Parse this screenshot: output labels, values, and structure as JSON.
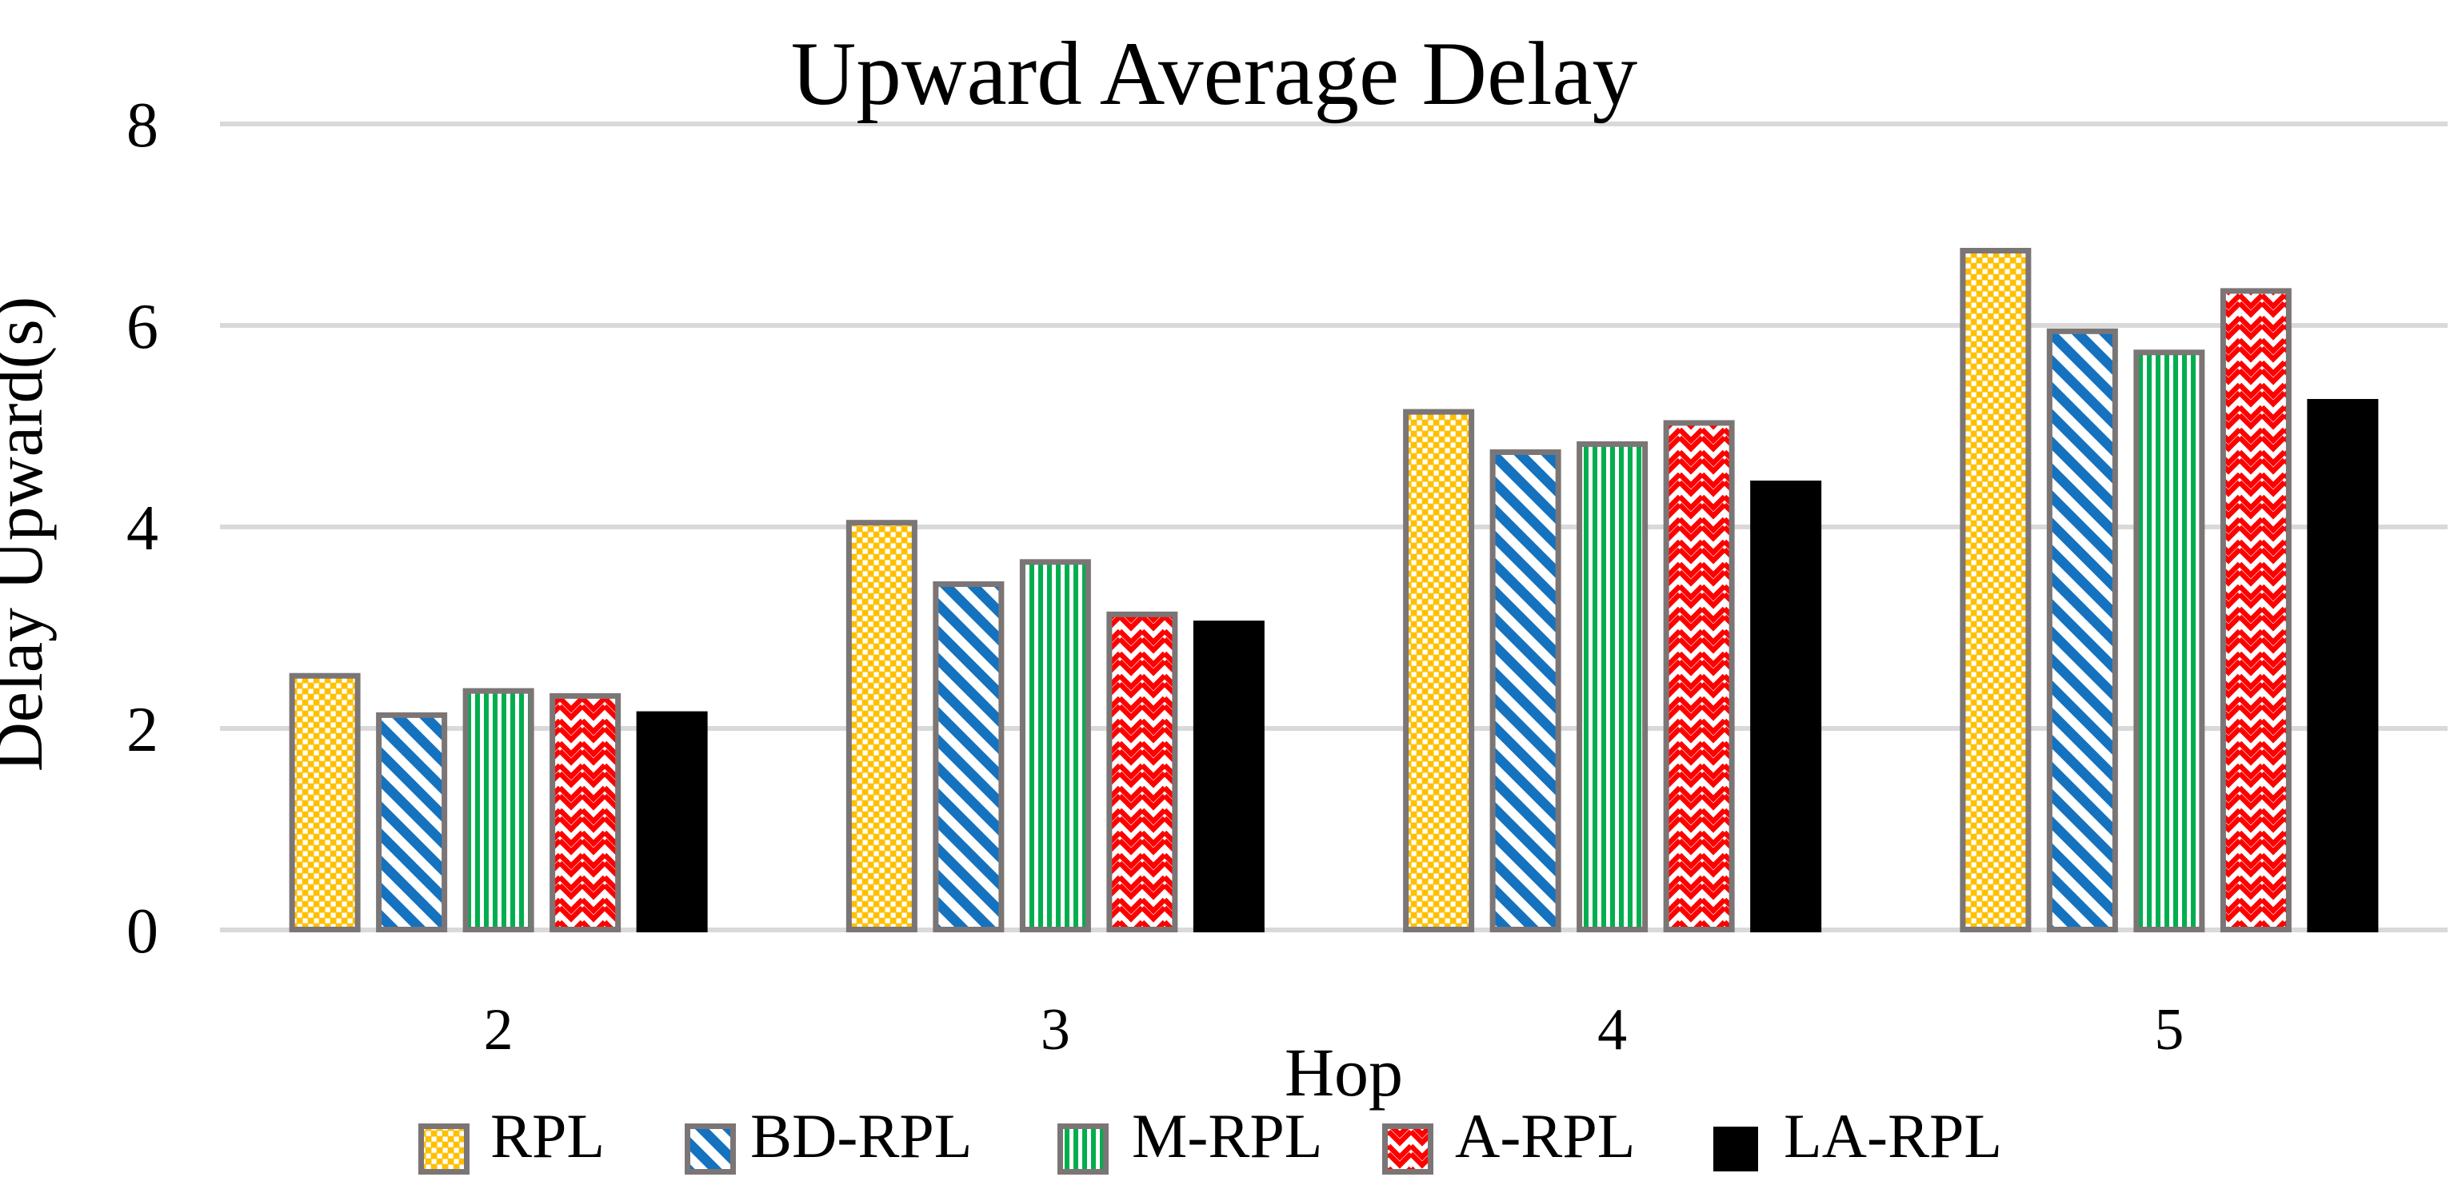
{
  "chart_data": {
    "type": "bar",
    "title": "Upward Average Delay",
    "xlabel": "Hop",
    "ylabel": "Delay Upward(s)",
    "categories": [
      "2",
      "3",
      "4",
      "5"
    ],
    "yticks": [
      0,
      2,
      4,
      6,
      8
    ],
    "ylim": [
      0,
      8
    ],
    "grid": true,
    "legend_position": "bottom",
    "gridline_color": "#D9D9D9",
    "bar_outline_color": "#7B7575",
    "background_color": "#FFFFFF",
    "series": [
      {
        "name": "RPL",
        "pattern": "checker",
        "color": "#FFC000",
        "values": [
          2.55,
          4.07,
          5.17,
          6.77
        ]
      },
      {
        "name": "BD-RPL",
        "pattern": "diagonal-stripes",
        "color": "#1572BF",
        "values": [
          2.16,
          3.46,
          4.77,
          5.97
        ]
      },
      {
        "name": "M-RPL",
        "pattern": "vertical-stripes",
        "color": "#00AE4E",
        "values": [
          2.4,
          3.68,
          4.85,
          5.76
        ]
      },
      {
        "name": "A-RPL",
        "pattern": "zigzag",
        "color": "#FE0000",
        "values": [
          2.35,
          3.16,
          5.06,
          6.37
        ]
      },
      {
        "name": "LA-RPL",
        "pattern": "solid",
        "color": "#000000",
        "values": [
          2.17,
          3.07,
          4.46,
          5.27
        ]
      }
    ]
  }
}
